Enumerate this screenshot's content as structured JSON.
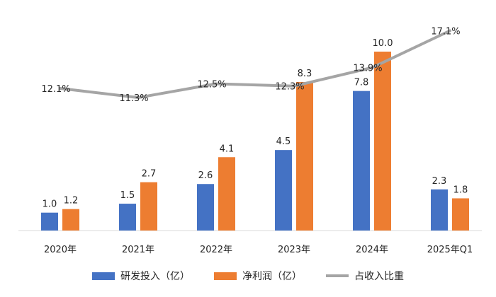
{
  "chart_data": {
    "type": "bar",
    "categories": [
      "2020年",
      "2021年",
      "2022年",
      "2023年",
      "2024年",
      "2025年Q1"
    ],
    "series": [
      {
        "name": "研发投入（亿）",
        "kind": "bar",
        "color": "#4472C4",
        "values": [
          1.0,
          1.5,
          2.6,
          4.5,
          7.8,
          2.3
        ],
        "labels": [
          "1.0",
          "1.5",
          "2.6",
          "4.5",
          "7.8",
          "2.3"
        ]
      },
      {
        "name": "净利润（亿）",
        "kind": "bar",
        "color": "#ED7D31",
        "values": [
          1.2,
          2.7,
          4.1,
          8.3,
          10.0,
          1.8
        ],
        "labels": [
          "1.2",
          "2.7",
          "4.1",
          "8.3",
          "10.0",
          "1.8"
        ]
      },
      {
        "name": "占收入比重",
        "kind": "line",
        "color": "#A5A5A5",
        "values": [
          12.1,
          11.3,
          12.5,
          12.3,
          13.9,
          17.1
        ],
        "labels": [
          "12.1%",
          "11.3%",
          "12.5%",
          "12.3%",
          "13.9%",
          "17.1%"
        ]
      }
    ],
    "grid": false,
    "legend_position": "bottom"
  }
}
